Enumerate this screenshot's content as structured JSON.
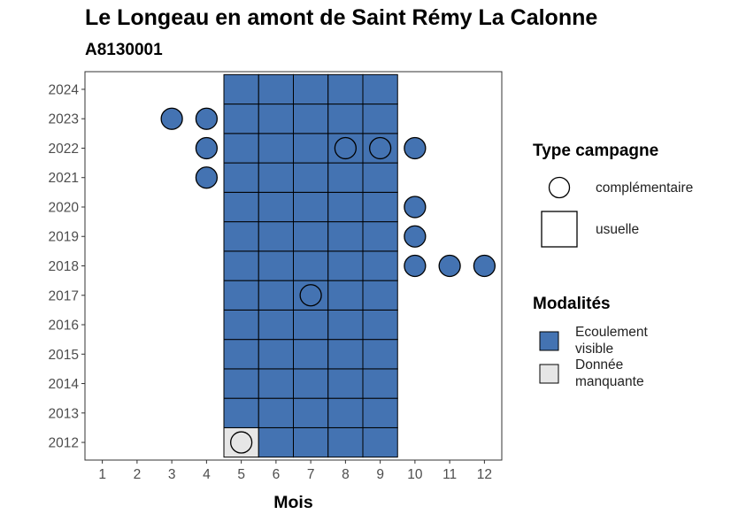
{
  "title": "Le Longeau en amont de Saint Rémy La Calonne",
  "subtitle": "A8130001",
  "chart_data": {
    "type": "heatmap",
    "xlabel": "Mois",
    "ylabel": "",
    "x_ticks": [
      1,
      2,
      3,
      4,
      5,
      6,
      7,
      8,
      9,
      10,
      11,
      12
    ],
    "y_ticks": [
      2012,
      2013,
      2014,
      2015,
      2016,
      2017,
      2018,
      2019,
      2020,
      2021,
      2022,
      2023,
      2024
    ],
    "xlim": [
      0.5,
      12.5
    ],
    "ylim": [
      2011.4,
      2024.6
    ],
    "grid": false,
    "legend_placement": "right",
    "colors": {
      "ecoulement_visible": "#4473b2",
      "donnee_manquante": "#e6e6e6"
    },
    "usual_campaigns": [
      {
        "years": [
          2012,
          2024
        ],
        "months": [
          5,
          6,
          7,
          8,
          9
        ]
      }
    ],
    "cells": [
      {
        "month": 5,
        "year": 2012,
        "modalite": "Donnée manquante"
      }
    ],
    "default_modalite": "Ecoulement visible",
    "complementary_campaigns": [
      {
        "month": 5,
        "year": 2012,
        "modalite": "Donnée manquante"
      },
      {
        "month": 7,
        "year": 2017,
        "modalite": "Ecoulement visible"
      },
      {
        "month": 10,
        "year": 2018,
        "modalite": "Ecoulement visible"
      },
      {
        "month": 11,
        "year": 2018,
        "modalite": "Ecoulement visible"
      },
      {
        "month": 12,
        "year": 2018,
        "modalite": "Ecoulement visible"
      },
      {
        "month": 10,
        "year": 2019,
        "modalite": "Ecoulement visible"
      },
      {
        "month": 10,
        "year": 2020,
        "modalite": "Ecoulement visible"
      },
      {
        "month": 4,
        "year": 2021,
        "modalite": "Ecoulement visible"
      },
      {
        "month": 4,
        "year": 2022,
        "modalite": "Ecoulement visible"
      },
      {
        "month": 8,
        "year": 2022,
        "modalite": "Ecoulement visible"
      },
      {
        "month": 9,
        "year": 2022,
        "modalite": "Ecoulement visible"
      },
      {
        "month": 10,
        "year": 2022,
        "modalite": "Ecoulement visible"
      },
      {
        "month": 3,
        "year": 2023,
        "modalite": "Ecoulement visible"
      },
      {
        "month": 4,
        "year": 2023,
        "modalite": "Ecoulement visible"
      }
    ]
  },
  "legend": {
    "type_title": "Type campagne",
    "type_items": [
      {
        "shape": "circle",
        "label": "complémentaire"
      },
      {
        "shape": "square",
        "label": "usuelle"
      }
    ],
    "modalites_title": "Modalités",
    "modalites_items": [
      {
        "label": "Ecoulement visible",
        "color": "#4473b2"
      },
      {
        "label": "Donnée manquante",
        "color": "#e6e6e6"
      }
    ]
  }
}
